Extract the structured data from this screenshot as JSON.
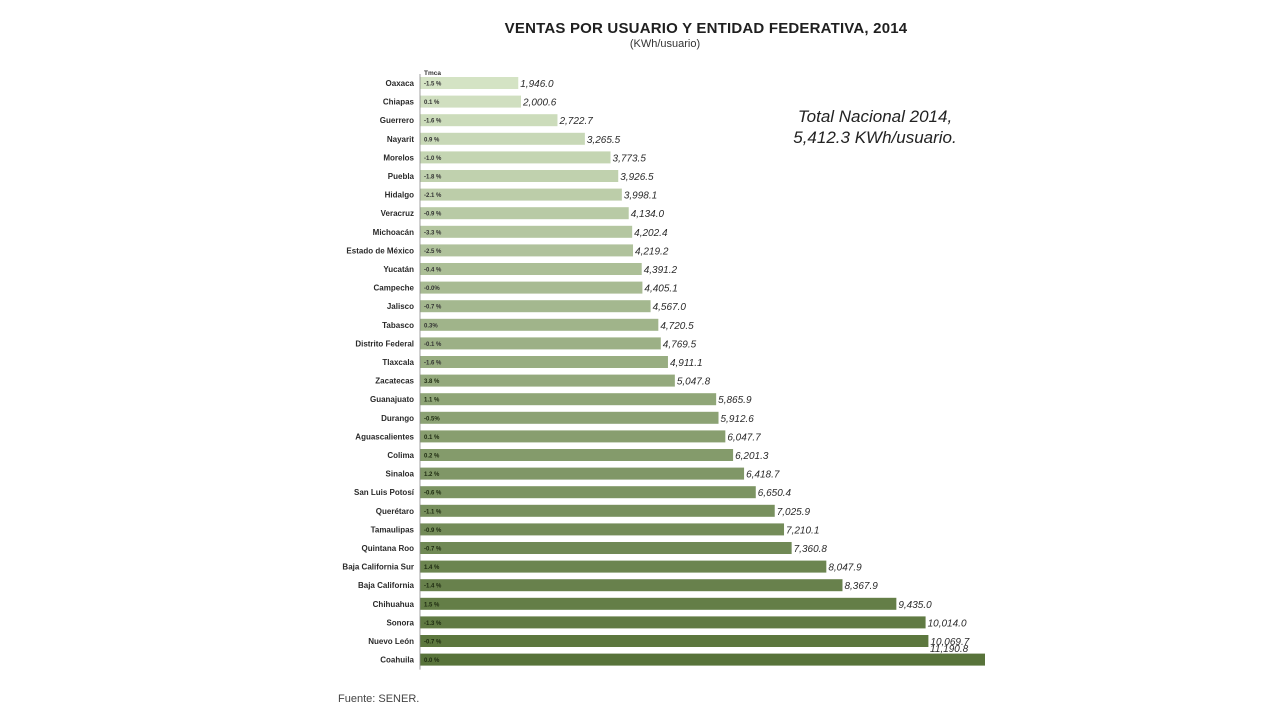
{
  "chart_data": {
    "type": "bar",
    "orientation": "horizontal",
    "title": "VENTAS POR USUARIO Y ENTIDAD FEDERATIVA, 2014",
    "subtitle": "(KWh/usuario)",
    "rate_header": "Tmca",
    "categories": [
      "Oaxaca",
      "Chiapas",
      "Guerrero",
      "Nayarit",
      "Morelos",
      "Puebla",
      "Hidalgo",
      "Veracruz",
      "Michoacán",
      "Estado de México",
      "Yucatán",
      "Campeche",
      "Jalisco",
      "Tabasco",
      "Distrito Federal",
      "Tlaxcala",
      "Zacatecas",
      "Guanajuato",
      "Durango",
      "Aguascalientes",
      "Colima",
      "Sinaloa",
      "San Luis Potosí",
      "Querétaro",
      "Tamaulipas",
      "Quintana Roo",
      "Baja California Sur",
      "Baja California",
      "Chihuahua",
      "Sonora",
      "Nuevo León",
      "Coahuila"
    ],
    "values": [
      1946.0,
      2000.6,
      2722.7,
      3265.5,
      3773.5,
      3926.5,
      3998.1,
      4134.0,
      4202.4,
      4219.2,
      4391.2,
      4405.1,
      4567.0,
      4720.5,
      4769.5,
      4911.1,
      5047.8,
      5865.9,
      5912.6,
      6047.7,
      6201.3,
      6418.7,
      6650.4,
      7025.9,
      7210.1,
      7360.8,
      8047.9,
      8367.9,
      9435.0,
      10014.0,
      10069.7,
      11190.8
    ],
    "value_labels": [
      "1,946.0",
      "2,000.6",
      "2,722.7",
      "3,265.5",
      "3,773.5",
      "3,926.5",
      "3,998.1",
      "4,134.0",
      "4,202.4",
      "4,219.2",
      "4,391.2",
      "4,405.1",
      "4,567.0",
      "4,720.5",
      "4,769.5",
      "4,911.1",
      "5,047.8",
      "5,865.9",
      "5,912.6",
      "6,047.7",
      "6,201.3",
      "6,418.7",
      "6,650.4",
      "7,025.9",
      "7,210.1",
      "7,360.8",
      "8,047.9",
      "8,367.9",
      "9,435.0",
      "10,014.0",
      "10,069.7",
      "11,190.8"
    ],
    "tmca_labels": [
      "-1.5 %",
      "0.1 %",
      "-1.6 %",
      "0.9 %",
      "-1.0 %",
      "-1.8 %",
      "-2.1 %",
      "-0.9 %",
      "-3.3 %",
      "-2.5 %",
      "-0.4 %",
      "-0.0%",
      "-0.7 %",
      "0.3%",
      "-0.1 %",
      "-1.6 %",
      "3.8 %",
      "1.1 %",
      "-0.5%",
      "0.1 %",
      "0.2 %",
      "1.2 %",
      "-0.6 %",
      "-1.1 %",
      "-0.9 %",
      "-0.7 %",
      "1.4 %",
      "-1.4 %",
      "1.5 %",
      "-1.3 %",
      "-0.7 %",
      "0.0 %"
    ],
    "xlim": [
      0,
      11190.8
    ],
    "grid": false,
    "legend": "none",
    "color_start": "#d4e3c4",
    "color_end": "#58733a"
  },
  "annotation": {
    "line1": "Total Nacional 2014,",
    "line2": "5,412.3 KWh/usuario."
  },
  "source": "Fuente: SENER."
}
